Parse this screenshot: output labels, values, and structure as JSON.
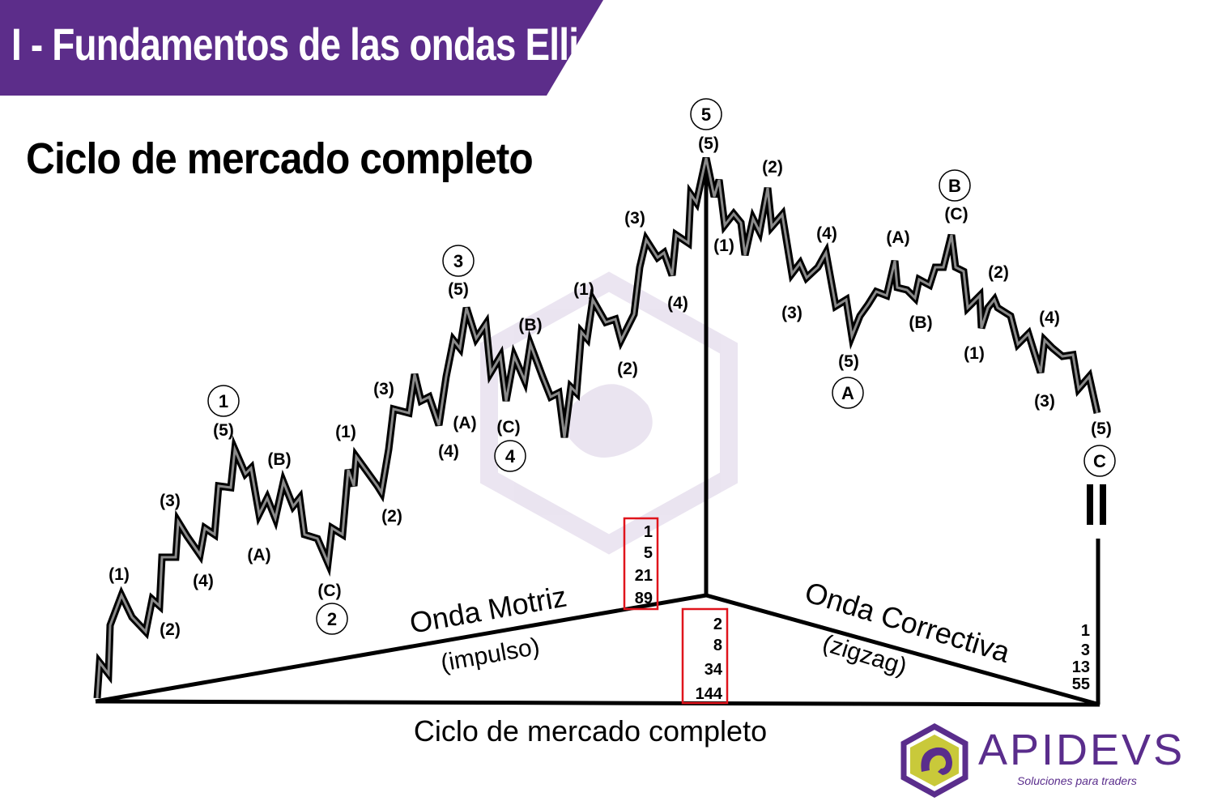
{
  "header": {
    "title": "I - Fundamentos de las ondas Elliot"
  },
  "subtitle": "Ciclo de mercado completo",
  "diagram": {
    "impulse_labels": [
      "1",
      "2",
      "3",
      "4",
      "5"
    ],
    "corrective_labels": [
      "A",
      "B",
      "C"
    ],
    "subwave_labels": {
      "impulse": [
        "(1)",
        "(2)",
        "(3)",
        "(4)",
        "(5)"
      ],
      "corrective": [
        "(A)",
        "(B)",
        "(C)"
      ]
    },
    "motriz_title": "Onda Motriz",
    "motriz_sub": "(impulso)",
    "correctiva_title": "Onda Correctiva",
    "correctiva_sub": "(zigzag)",
    "bottom_caption": "Ciclo de mercado completo",
    "fib_top": [
      "1",
      "5",
      "21",
      "89"
    ],
    "fib_mid": [
      "2",
      "8",
      "34",
      "144"
    ],
    "fib_right": [
      "1",
      "3",
      "13",
      "55"
    ],
    "colors": {
      "banner": "#5c2d8a",
      "highlight_box": "#e0141c",
      "line": "#000000"
    }
  },
  "logo": {
    "name": "APIDEVS",
    "tagline": "Soluciones para traders"
  }
}
